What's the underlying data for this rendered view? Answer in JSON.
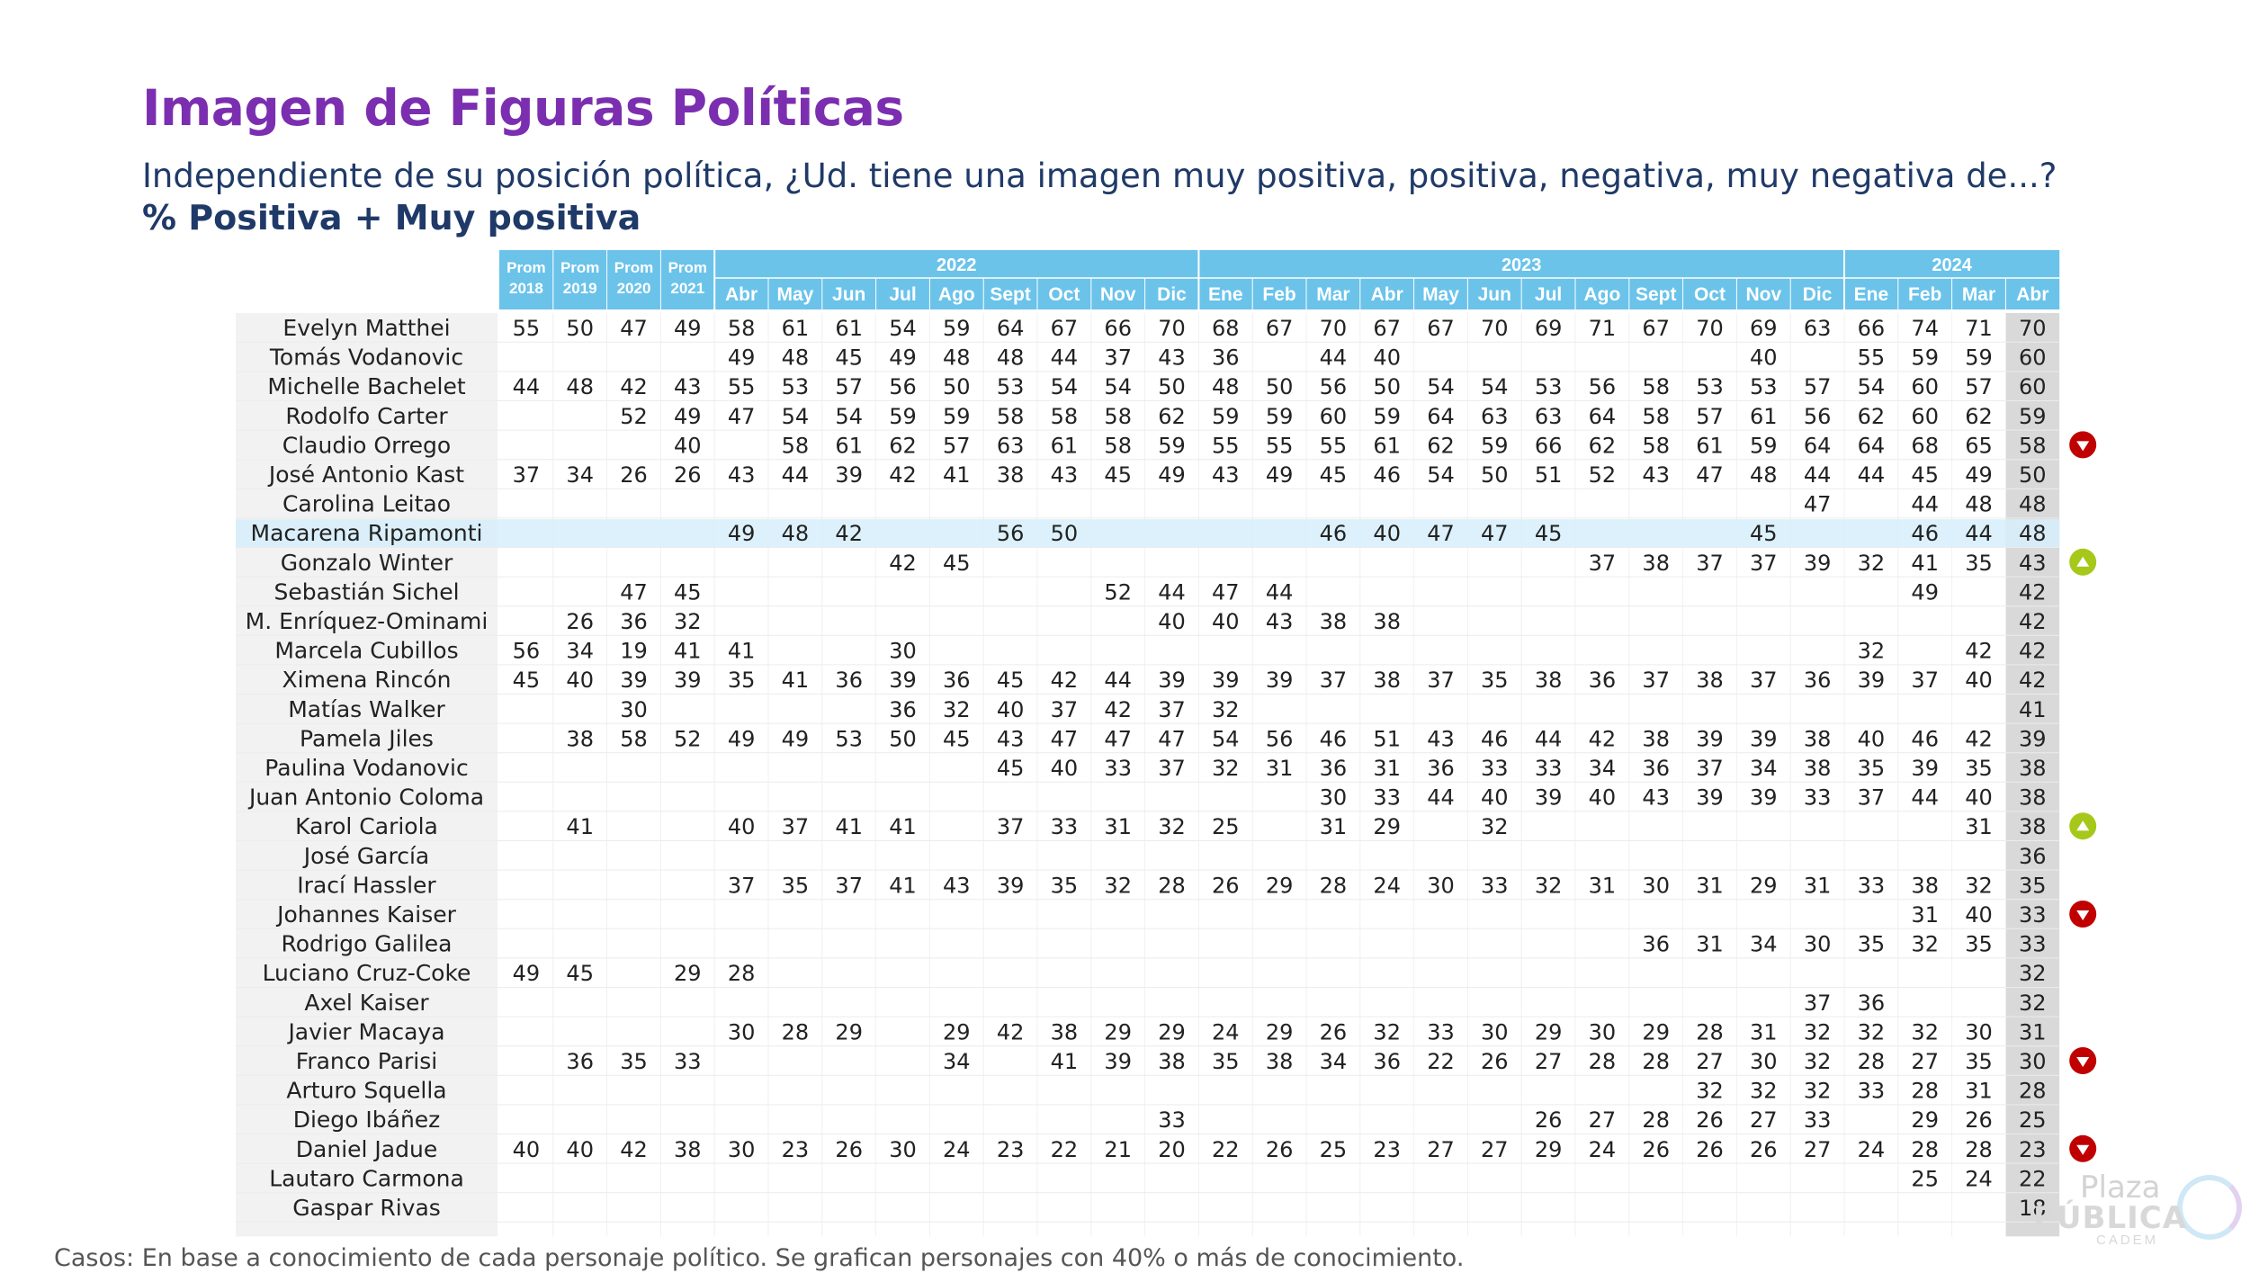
{
  "title": "Imagen de Figuras Políticas",
  "subtitle": "Independiente de su posición política, ¿Ud. tiene una imagen muy positiva, positiva, negativa, muy negativa de...?",
  "measure": "% Positiva + Muy positiva",
  "footer": "Casos: En base a conocimiento de cada personaje político. Se grafican personajes con 40% o más de conocimiento.",
  "logo": {
    "line1": "Plaza",
    "line2": "PÚBLICA",
    "line3": "CADEM"
  },
  "colors": {
    "header_bg": "#6bc3ea",
    "title": "#7b2fb0",
    "text_dark": "#1f3a68",
    "last_col_bg": "#d9d9d9",
    "name_col_bg": "#f2f2f2",
    "highlight_row": "#d6eefa",
    "arrow_down": "#c00000",
    "arrow_up": "#a6c81a"
  },
  "chart_data": {
    "type": "table",
    "column_groups": [
      {
        "label": "",
        "columns": [
          {
            "line1": "Prom",
            "line2": "2018"
          },
          {
            "line1": "Prom",
            "line2": "2019"
          },
          {
            "line1": "Prom",
            "line2": "2020"
          },
          {
            "line1": "Prom",
            "line2": "2021"
          }
        ]
      },
      {
        "label": "2022",
        "columns": [
          "Abr",
          "May",
          "Jun",
          "Jul",
          "Ago",
          "Sept",
          "Oct",
          "Nov",
          "Dic"
        ]
      },
      {
        "label": "2023",
        "columns": [
          "Ene",
          "Feb",
          "Mar",
          "Abr",
          "May",
          "Jun",
          "Jul",
          "Ago",
          "Sept",
          "Oct",
          "Nov",
          "Dic"
        ]
      },
      {
        "label": "2024",
        "columns": [
          "Ene",
          "Feb",
          "Mar",
          "Abr"
        ]
      }
    ],
    "rows": [
      {
        "name": "Evelyn Matthei",
        "values": [
          55,
          50,
          47,
          49,
          58,
          61,
          61,
          54,
          59,
          64,
          67,
          66,
          70,
          68,
          67,
          70,
          67,
          67,
          70,
          69,
          71,
          67,
          70,
          69,
          63,
          66,
          74,
          71,
          70
        ],
        "trend": null
      },
      {
        "name": "Tomás Vodanovic",
        "values": [
          null,
          null,
          null,
          null,
          49,
          48,
          45,
          49,
          48,
          48,
          44,
          37,
          43,
          36,
          null,
          44,
          40,
          null,
          null,
          null,
          null,
          null,
          null,
          40,
          null,
          55,
          59,
          59,
          60
        ],
        "trend": null
      },
      {
        "name": "Michelle Bachelet",
        "values": [
          44,
          48,
          42,
          43,
          55,
          53,
          57,
          56,
          50,
          53,
          54,
          54,
          50,
          48,
          50,
          56,
          50,
          54,
          54,
          53,
          56,
          58,
          53,
          53,
          57,
          54,
          60,
          57,
          60
        ],
        "trend": null
      },
      {
        "name": "Rodolfo Carter",
        "values": [
          null,
          null,
          52,
          49,
          47,
          54,
          54,
          59,
          59,
          58,
          58,
          58,
          62,
          59,
          59,
          60,
          59,
          64,
          63,
          63,
          64,
          58,
          57,
          61,
          56,
          62,
          60,
          62,
          59
        ],
        "trend": null
      },
      {
        "name": "Claudio Orrego",
        "values": [
          null,
          null,
          null,
          40,
          null,
          58,
          61,
          62,
          57,
          63,
          61,
          58,
          59,
          55,
          55,
          55,
          61,
          62,
          59,
          66,
          62,
          58,
          61,
          59,
          64,
          64,
          68,
          65,
          58
        ],
        "trend": "down"
      },
      {
        "name": "José Antonio Kast",
        "values": [
          37,
          34,
          26,
          26,
          43,
          44,
          39,
          42,
          41,
          38,
          43,
          45,
          49,
          43,
          49,
          45,
          46,
          54,
          50,
          51,
          52,
          43,
          47,
          48,
          44,
          44,
          45,
          49,
          50
        ],
        "trend": null
      },
      {
        "name": "Carolina Leitao",
        "values": [
          null,
          null,
          null,
          null,
          null,
          null,
          null,
          null,
          null,
          null,
          null,
          null,
          null,
          null,
          null,
          null,
          null,
          null,
          null,
          null,
          null,
          null,
          null,
          null,
          47,
          null,
          44,
          48,
          48
        ],
        "trend": null
      },
      {
        "name": "Macarena Ripamonti",
        "values": [
          null,
          null,
          null,
          null,
          49,
          48,
          42,
          null,
          null,
          56,
          50,
          null,
          null,
          null,
          null,
          46,
          40,
          47,
          47,
          45,
          null,
          null,
          null,
          45,
          null,
          null,
          46,
          44,
          48
        ],
        "trend": null,
        "highlight": true
      },
      {
        "name": "Gonzalo Winter",
        "values": [
          null,
          null,
          null,
          null,
          null,
          null,
          null,
          42,
          45,
          null,
          null,
          null,
          null,
          null,
          null,
          null,
          null,
          null,
          null,
          null,
          37,
          38,
          37,
          37,
          39,
          32,
          41,
          35,
          43
        ],
        "trend": "up"
      },
      {
        "name": "Sebastián Sichel",
        "values": [
          null,
          null,
          47,
          45,
          null,
          null,
          null,
          null,
          null,
          null,
          null,
          52,
          44,
          47,
          44,
          null,
          null,
          null,
          null,
          null,
          null,
          null,
          null,
          null,
          null,
          null,
          49,
          null,
          42
        ],
        "trend": null
      },
      {
        "name": "M. Enríquez-Ominami",
        "values": [
          null,
          26,
          36,
          32,
          null,
          null,
          null,
          null,
          null,
          null,
          null,
          null,
          40,
          40,
          43,
          38,
          38,
          null,
          null,
          null,
          null,
          null,
          null,
          null,
          null,
          null,
          null,
          null,
          42
        ],
        "trend": null
      },
      {
        "name": "Marcela Cubillos",
        "values": [
          56,
          34,
          19,
          41,
          41,
          null,
          null,
          30,
          null,
          null,
          null,
          null,
          null,
          null,
          null,
          null,
          null,
          null,
          null,
          null,
          null,
          null,
          null,
          null,
          null,
          32,
          null,
          42,
          42
        ],
        "trend": null
      },
      {
        "name": "Ximena Rincón",
        "values": [
          45,
          40,
          39,
          39,
          35,
          41,
          36,
          39,
          36,
          45,
          42,
          44,
          39,
          39,
          39,
          37,
          38,
          37,
          35,
          38,
          36,
          37,
          38,
          37,
          36,
          39,
          37,
          40,
          42
        ],
        "trend": null
      },
      {
        "name": "Matías Walker",
        "values": [
          null,
          null,
          30,
          null,
          null,
          null,
          null,
          36,
          32,
          40,
          37,
          42,
          37,
          32,
          null,
          null,
          null,
          null,
          null,
          null,
          null,
          null,
          null,
          null,
          null,
          null,
          null,
          null,
          41
        ],
        "trend": null
      },
      {
        "name": "Pamela Jiles",
        "values": [
          null,
          38,
          58,
          52,
          49,
          49,
          53,
          50,
          45,
          43,
          47,
          47,
          47,
          54,
          56,
          46,
          51,
          43,
          46,
          44,
          42,
          38,
          39,
          39,
          38,
          40,
          46,
          42,
          39
        ],
        "trend": null
      },
      {
        "name": "Paulina Vodanovic",
        "values": [
          null,
          null,
          null,
          null,
          null,
          null,
          null,
          null,
          null,
          45,
          40,
          33,
          37,
          32,
          31,
          36,
          31,
          36,
          33,
          33,
          34,
          36,
          37,
          34,
          38,
          35,
          39,
          35,
          38
        ],
        "trend": null
      },
      {
        "name": "Juan Antonio Coloma",
        "values": [
          null,
          null,
          null,
          null,
          null,
          null,
          null,
          null,
          null,
          null,
          null,
          null,
          null,
          null,
          null,
          30,
          33,
          44,
          40,
          39,
          40,
          43,
          39,
          39,
          33,
          37,
          44,
          40,
          38
        ],
        "trend": null
      },
      {
        "name": "Karol Cariola",
        "values": [
          null,
          41,
          null,
          null,
          40,
          37,
          41,
          41,
          null,
          37,
          33,
          31,
          32,
          25,
          null,
          31,
          29,
          null,
          32,
          null,
          null,
          null,
          null,
          null,
          null,
          null,
          null,
          31,
          38
        ],
        "trend": "up"
      },
      {
        "name": "José García",
        "values": [
          null,
          null,
          null,
          null,
          null,
          null,
          null,
          null,
          null,
          null,
          null,
          null,
          null,
          null,
          null,
          null,
          null,
          null,
          null,
          null,
          null,
          null,
          null,
          null,
          null,
          null,
          null,
          null,
          36
        ],
        "trend": null
      },
      {
        "name": "Irací Hassler",
        "values": [
          null,
          null,
          null,
          null,
          37,
          35,
          37,
          41,
          43,
          39,
          35,
          32,
          28,
          26,
          29,
          28,
          24,
          30,
          33,
          32,
          31,
          30,
          31,
          29,
          31,
          33,
          38,
          32,
          35
        ],
        "trend": null
      },
      {
        "name": "Johannes Kaiser",
        "values": [
          null,
          null,
          null,
          null,
          null,
          null,
          null,
          null,
          null,
          null,
          null,
          null,
          null,
          null,
          null,
          null,
          null,
          null,
          null,
          null,
          null,
          null,
          null,
          null,
          null,
          null,
          31,
          40,
          33
        ],
        "trend": "down"
      },
      {
        "name": "Rodrigo Galilea",
        "values": [
          null,
          null,
          null,
          null,
          null,
          null,
          null,
          null,
          null,
          null,
          null,
          null,
          null,
          null,
          null,
          null,
          null,
          null,
          null,
          null,
          null,
          36,
          31,
          34,
          30,
          35,
          32,
          35,
          33
        ],
        "trend": null
      },
      {
        "name": "Luciano Cruz-Coke",
        "values": [
          49,
          45,
          null,
          29,
          28,
          null,
          null,
          null,
          null,
          null,
          null,
          null,
          null,
          null,
          null,
          null,
          null,
          null,
          null,
          null,
          null,
          null,
          null,
          null,
          null,
          null,
          null,
          null,
          32
        ],
        "trend": null
      },
      {
        "name": "Axel Kaiser",
        "values": [
          null,
          null,
          null,
          null,
          null,
          null,
          null,
          null,
          null,
          null,
          null,
          null,
          null,
          null,
          null,
          null,
          null,
          null,
          null,
          null,
          null,
          null,
          null,
          null,
          37,
          36,
          null,
          null,
          32
        ],
        "trend": null
      },
      {
        "name": "Javier Macaya",
        "values": [
          null,
          null,
          null,
          null,
          30,
          28,
          29,
          null,
          29,
          42,
          38,
          29,
          29,
          24,
          29,
          26,
          32,
          33,
          30,
          29,
          30,
          29,
          28,
          31,
          32,
          32,
          32,
          30,
          31
        ],
        "trend": null
      },
      {
        "name": "Franco Parisi",
        "values": [
          null,
          36,
          35,
          33,
          null,
          null,
          null,
          null,
          34,
          null,
          41,
          39,
          38,
          35,
          38,
          34,
          36,
          22,
          26,
          27,
          28,
          28,
          27,
          30,
          32,
          28,
          27,
          35,
          30
        ],
        "trend": "down"
      },
      {
        "name": "Arturo Squella",
        "values": [
          null,
          null,
          null,
          null,
          null,
          null,
          null,
          null,
          null,
          null,
          null,
          null,
          null,
          null,
          null,
          null,
          null,
          null,
          null,
          null,
          null,
          null,
          32,
          32,
          32,
          33,
          28,
          31,
          28
        ],
        "trend": null
      },
      {
        "name": "Diego Ibáñez",
        "values": [
          null,
          null,
          null,
          null,
          null,
          null,
          null,
          null,
          null,
          null,
          null,
          null,
          33,
          null,
          null,
          null,
          null,
          null,
          null,
          26,
          27,
          28,
          26,
          27,
          33,
          null,
          29,
          26,
          25
        ],
        "trend": null
      },
      {
        "name": "Daniel Jadue",
        "values": [
          40,
          40,
          42,
          38,
          30,
          23,
          26,
          30,
          24,
          23,
          22,
          21,
          20,
          22,
          26,
          25,
          23,
          27,
          27,
          29,
          24,
          26,
          26,
          26,
          27,
          24,
          28,
          28,
          23
        ],
        "trend": "down"
      },
      {
        "name": "Lautaro Carmona",
        "values": [
          null,
          null,
          null,
          null,
          null,
          null,
          null,
          null,
          null,
          null,
          null,
          null,
          null,
          null,
          null,
          null,
          null,
          null,
          null,
          null,
          null,
          null,
          null,
          null,
          null,
          null,
          25,
          24,
          22
        ],
        "trend": null
      },
      {
        "name": "Gaspar Rivas",
        "values": [
          null,
          null,
          null,
          null,
          null,
          null,
          null,
          null,
          null,
          null,
          null,
          null,
          null,
          null,
          null,
          null,
          null,
          null,
          null,
          null,
          null,
          null,
          null,
          null,
          null,
          null,
          null,
          null,
          18
        ],
        "trend": null
      }
    ]
  }
}
